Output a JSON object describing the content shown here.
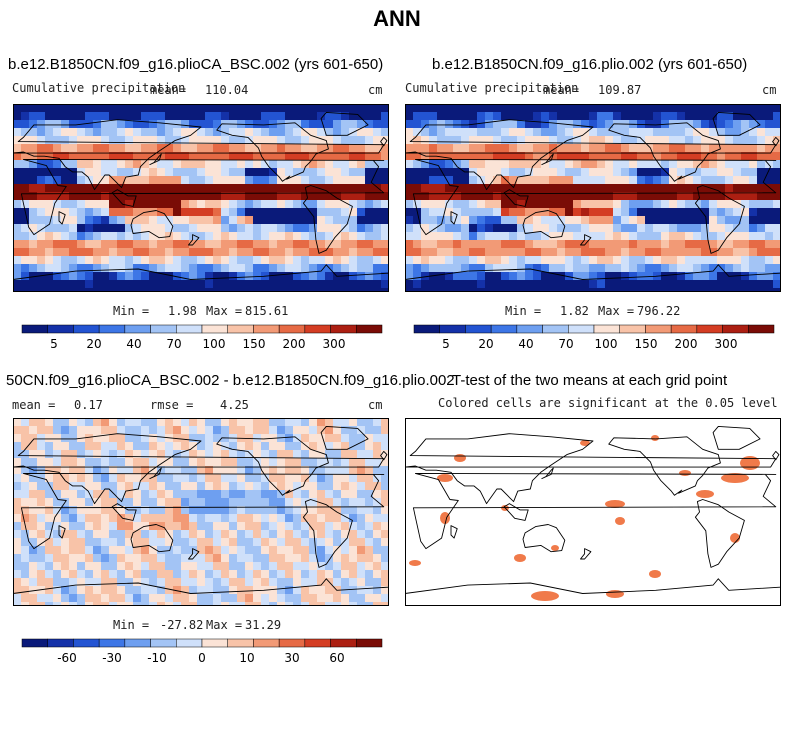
{
  "page": {
    "title": "ANN"
  },
  "palette_precip": [
    "#0a1a7a",
    "#1431a8",
    "#2354d2",
    "#3d76e6",
    "#6e9ff0",
    "#a3c4f5",
    "#cfe0fa",
    "#fbe3d6",
    "#f8c3a8",
    "#f29a76",
    "#e66a45",
    "#d43d23",
    "#ac1f12",
    "#7a0c06"
  ],
  "palette_diff": [
    "#0a1a7a",
    "#1431a8",
    "#2354d2",
    "#3d76e6",
    "#6e9ff0",
    "#a3c4f5",
    "#cfe0fa",
    "#fbe3d6",
    "#f8c3a8",
    "#f29a76",
    "#e66a45",
    "#d43d23",
    "#ac1f12",
    "#7a0c06"
  ],
  "sig_color": "#f07a4a",
  "chart_data": [
    {
      "type": "heatmap",
      "panel": "top-left",
      "title": "b.e12.B1850CN.f09_g16.plioCA_BSC.002 (yrs 601-650)",
      "left_label": "Cumulative precipitation",
      "mean_label": "mean=",
      "mean_value": "110.04",
      "units": "cm",
      "min_label": "Min =",
      "min_value": "1.98",
      "max_label": "Max =",
      "max_value": "815.61",
      "colorbar_ticks": [
        "5",
        "20",
        "40",
        "70",
        "100",
        "150",
        "200",
        "300"
      ]
    },
    {
      "type": "heatmap",
      "panel": "top-right",
      "title": "b.e12.B1850CN.f09_g16.plio.002 (yrs 601-650)",
      "left_label": "Cumulative precipitation",
      "mean_label": "mean=",
      "mean_value": "109.87",
      "units": "cm",
      "min_label": "Min =",
      "min_value": "1.82",
      "max_label": "Max =",
      "max_value": "796.22",
      "colorbar_ticks": [
        "5",
        "20",
        "40",
        "70",
        "100",
        "150",
        "200",
        "300"
      ]
    },
    {
      "type": "heatmap",
      "panel": "bottom-left",
      "title": "50CN.f09_g16.plioCA_BSC.002 - b.e12.B1850CN.f09_g16.plio.002",
      "mean_label": "mean =",
      "mean_value": "0.17",
      "rmse_label": "rmse =",
      "rmse_value": "4.25",
      "units": "cm",
      "min_label": "Min =",
      "min_value": "-27.82",
      "max_label": "Max =",
      "max_value": "31.29",
      "colorbar_ticks": [
        "-60",
        "-30",
        "-10",
        "0",
        "10",
        "30",
        "60"
      ]
    },
    {
      "type": "heatmap",
      "panel": "bottom-right",
      "title": "T-test of the two means at each grid point",
      "subtitle": "Colored cells are significant at the 0.05 level"
    }
  ]
}
